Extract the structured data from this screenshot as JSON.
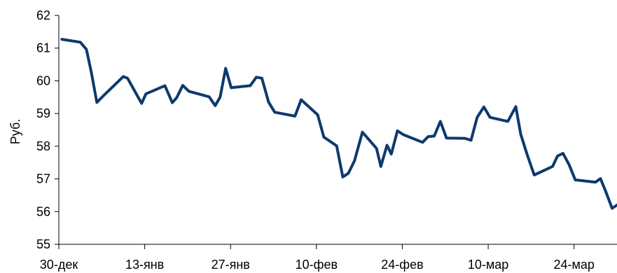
{
  "chart_data": {
    "type": "line",
    "title": "",
    "xlabel": "",
    "ylabel": "Руб.",
    "ylim": [
      55,
      62
    ],
    "y_ticks": [
      "55",
      "56",
      "57",
      "58",
      "59",
      "60",
      "61",
      "62"
    ],
    "x_tick_labels": [
      "30-дек",
      "13-янв",
      "27-янв",
      "10-фев",
      "24-фев",
      "10-мар",
      "24-мар"
    ],
    "x_tick_days": [
      0,
      14,
      28,
      42,
      56,
      70,
      84
    ],
    "x_range_days": [
      0,
      91
    ],
    "grid": false,
    "colors": {
      "line": "#0d3a6e",
      "axis": "#000000"
    },
    "series": [
      {
        "name": "",
        "x_days": [
          0.5,
          3.5,
          4.5,
          5.3,
          6.2,
          7.2,
          10.5,
          11.2,
          13.5,
          14.2,
          17.3,
          18.5,
          19.2,
          20.2,
          21.2,
          24.5,
          25.5,
          26.3,
          27.2,
          28.1,
          31.2,
          32.2,
          33.1,
          34.2,
          35.2,
          38.5,
          39.5,
          42.2,
          43.2,
          45.3,
          46.3,
          47.2,
          48.2,
          49.5,
          51.8,
          52.5,
          53.5,
          54.2,
          55.2,
          56.2,
          59.3,
          60.2,
          61.2,
          62.2,
          63.2,
          66.2,
          67.2,
          68.2,
          69.3,
          70.3,
          73.2,
          74.5,
          75.3,
          76.3,
          77.5,
          80.5,
          81.3,
          82.2,
          83.2,
          84.2,
          87.5,
          88.3,
          89.2,
          90.2,
          91.0
        ],
        "values": [
          61.27,
          61.18,
          60.96,
          60.26,
          59.34,
          59.53,
          60.13,
          60.08,
          59.31,
          59.6,
          59.85,
          59.33,
          59.48,
          59.86,
          59.68,
          59.51,
          59.24,
          59.5,
          60.38,
          59.79,
          59.85,
          60.11,
          60.08,
          59.35,
          59.04,
          58.92,
          59.42,
          58.96,
          58.28,
          58.01,
          57.06,
          57.17,
          57.55,
          58.43,
          57.93,
          57.38,
          58.03,
          57.76,
          58.47,
          58.35,
          58.12,
          58.29,
          58.31,
          58.76,
          58.25,
          58.24,
          58.18,
          58.88,
          59.2,
          58.88,
          58.76,
          59.21,
          58.37,
          57.77,
          57.12,
          57.38,
          57.7,
          57.78,
          57.43,
          56.97,
          56.9,
          57.01,
          56.6,
          56.1,
          56.2
        ]
      }
    ]
  }
}
